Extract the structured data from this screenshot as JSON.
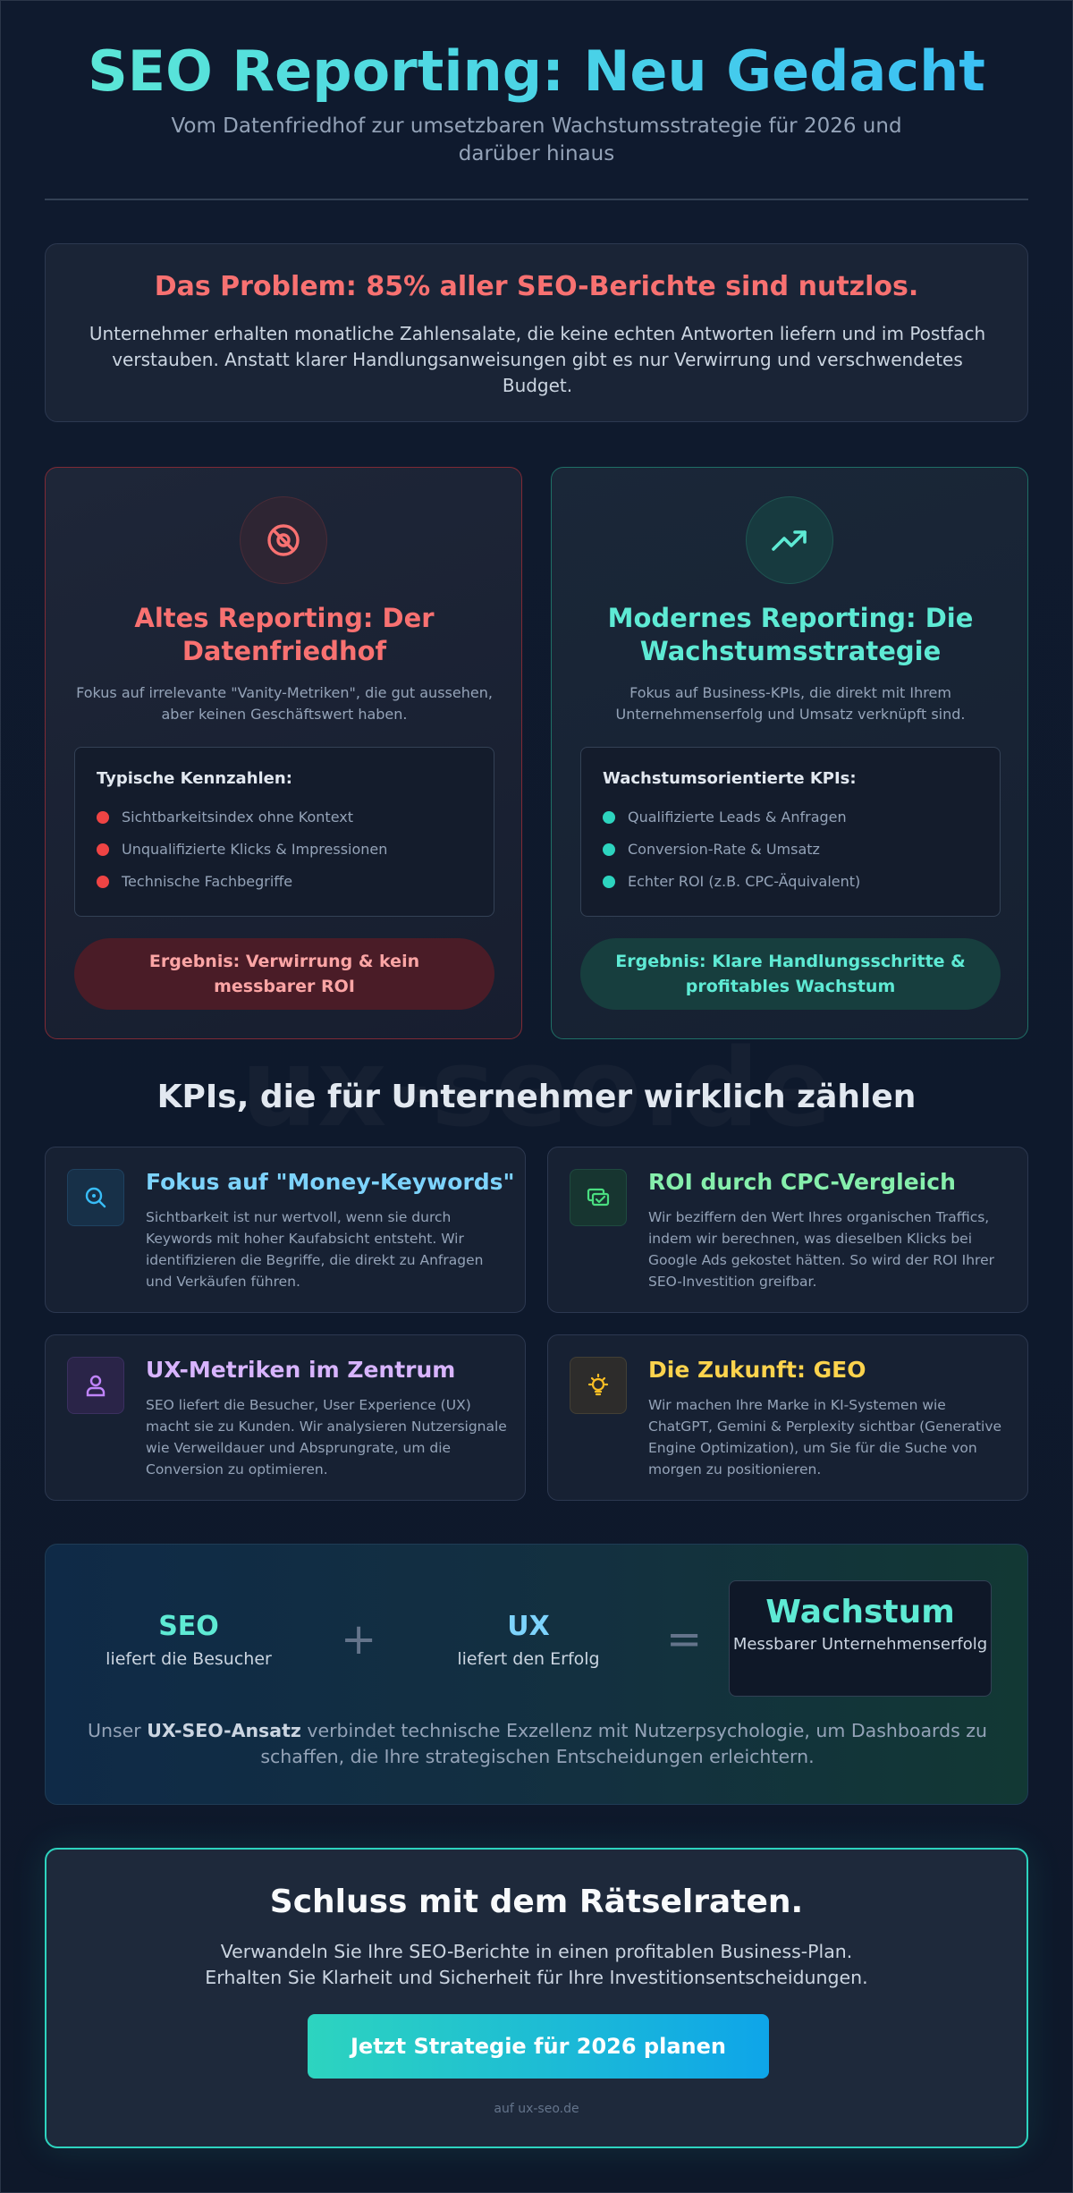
{
  "header": {
    "title": "SEO Reporting: Neu Gedacht",
    "subtitle": "Vom Datenfriedhof zur umsetzbaren Wachstumsstrategie für 2026 und darüber hinaus"
  },
  "problem": {
    "title": "Das Problem: 85% aller SEO-Berichte sind nutzlos.",
    "text": "Unternehmer erhalten monatliche Zahlensalate, die keine echten Antworten liefern und im Postfach verstauben. Anstatt klarer Handlungsanweisungen gibt es nur Verwirrung und verschwendetes Budget."
  },
  "old_reporting": {
    "icon": "eye-slash-icon",
    "title": "Altes Reporting: Der Datenfriedhof",
    "description": "Fokus auf irrelevante \"Vanity-Metriken\", die gut aussehen, aber keinen Geschäftswert haben.",
    "list_title": "Typische Kennzahlen:",
    "items": [
      "Sichtbarkeitsindex ohne Kontext",
      "Unqualifizierte Klicks & Impressionen",
      "Technische Fachbegriffe"
    ],
    "result": "Ergebnis: Verwirrung & kein messbarer ROI"
  },
  "new_reporting": {
    "icon": "trending-up-icon",
    "title": "Modernes Reporting: Die Wachstumsstrategie",
    "description": "Fokus auf Business-KPIs, die direkt mit Ihrem Unternehmenserfolg und Umsatz verknüpft sind.",
    "list_title": "Wachstumsorientierte KPIs:",
    "items": [
      "Qualifizierte Leads & Anfragen",
      "Conversion-Rate & Umsatz",
      "Echter ROI (z.B. CPC-Äquivalent)"
    ],
    "result": "Ergebnis: Klare Handlungsschritte & profitables Wachstum"
  },
  "kpis": {
    "watermark": "ux-seo.de",
    "title": "KPIs, die für Unternehmer wirklich zählen",
    "cards": [
      {
        "icon": "search-icon",
        "title": "Fokus auf \"Money-Keywords\"",
        "text": "Sichtbarkeit ist nur wertvoll, wenn sie durch Keywords mit hoher Kaufabsicht entsteht. Wir identifizieren die Begriffe, die direkt zu Anfragen und Verkäufen führen.",
        "color": "#7dd3fc"
      },
      {
        "icon": "money-check-icon",
        "title": "ROI durch CPC-Vergleich",
        "text": "Wir beziffern den Wert Ihres organischen Traffics, indem wir berechnen, was dieselben Klicks bei Google Ads gekostet hätten. So wird der ROI Ihrer SEO-Investition greifbar.",
        "color": "#86efac"
      },
      {
        "icon": "user-icon",
        "title": "UX-Metriken im Zentrum",
        "text": "SEO liefert die Besucher, User Experience (UX) macht sie zu Kunden. Wir analysieren Nutzersignale wie Verweildauer und Absprungrate, um die Conversion zu optimieren.",
        "color": "#d8b4fe"
      },
      {
        "icon": "lightbulb-icon",
        "title": "Die Zukunft: GEO",
        "text": "Wir machen Ihre Marke in KI-Systemen wie ChatGPT, Gemini & Perplexity sichtbar (Generative Engine Optimization), um Sie für die Suche von morgen zu positionieren.",
        "color": "#fcd34d"
      }
    ]
  },
  "formula": {
    "seo": "SEO",
    "seo_sub": "liefert die Besucher",
    "plus": "+",
    "ux": "UX",
    "ux_sub": "liefert den Erfolg",
    "equals": "=",
    "result": "Wachstum",
    "result_sub": "Messbarer Unternehmenserfolg",
    "note_prefix": "Unser ",
    "note_bold": "UX-SEO-Ansatz",
    "note_suffix": " verbindet technische Exzellenz mit Nutzerpsychologie, um Dashboards zu schaffen, die Ihre strategischen Entscheidungen erleichtern."
  },
  "cta": {
    "title": "Schluss mit dem Rätselraten.",
    "line1": "Verwandeln Sie Ihre SEO-Berichte in einen profitablen Business-Plan.",
    "line2": "Erhalten Sie Klarheit und Sicherheit für Ihre Investitionsentscheidungen.",
    "button": "Jetzt Strategie für 2026 planen",
    "footnote": "auf ux-seo.de"
  }
}
